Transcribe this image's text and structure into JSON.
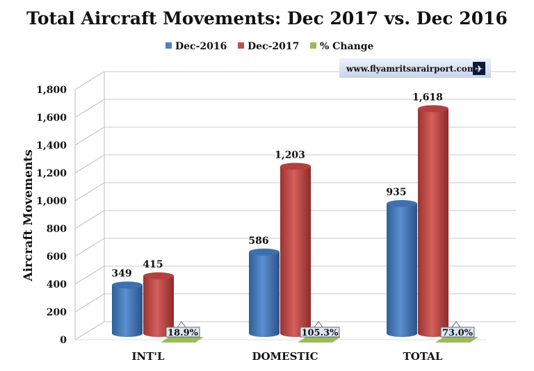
{
  "chart_data": {
    "type": "bar",
    "title": "Total Aircraft Movements: Dec 2017 vs. Dec 2016",
    "ylabel": "Aircraft Movements",
    "xlabel": "",
    "ylim": [
      0,
      1800
    ],
    "yticks": [
      "0",
      "200",
      "400",
      "600",
      "800",
      "1,000",
      "1,200",
      "1,400",
      "1,600",
      "1,800"
    ],
    "categories": [
      "INT'L",
      "DOMESTIC",
      "TOTAL"
    ],
    "series": [
      {
        "name": "Dec-2016",
        "color": "#4f81bd",
        "values": [
          349,
          586,
          935
        ],
        "labels": [
          "349",
          "586",
          "935"
        ]
      },
      {
        "name": "Dec-2017",
        "color": "#c0504d",
        "values": [
          415,
          1203,
          1618
        ],
        "labels": [
          "415",
          "1,203",
          "1,618"
        ]
      },
      {
        "name": "% Change",
        "color": "#9bbb59",
        "values": [
          18.9,
          105.3,
          73.0
        ],
        "labels": [
          "18.9%",
          "105.3%",
          "73.0%"
        ]
      }
    ],
    "legend_position": "top",
    "grid": true
  },
  "watermark": "www.flyamritsarairport.com"
}
